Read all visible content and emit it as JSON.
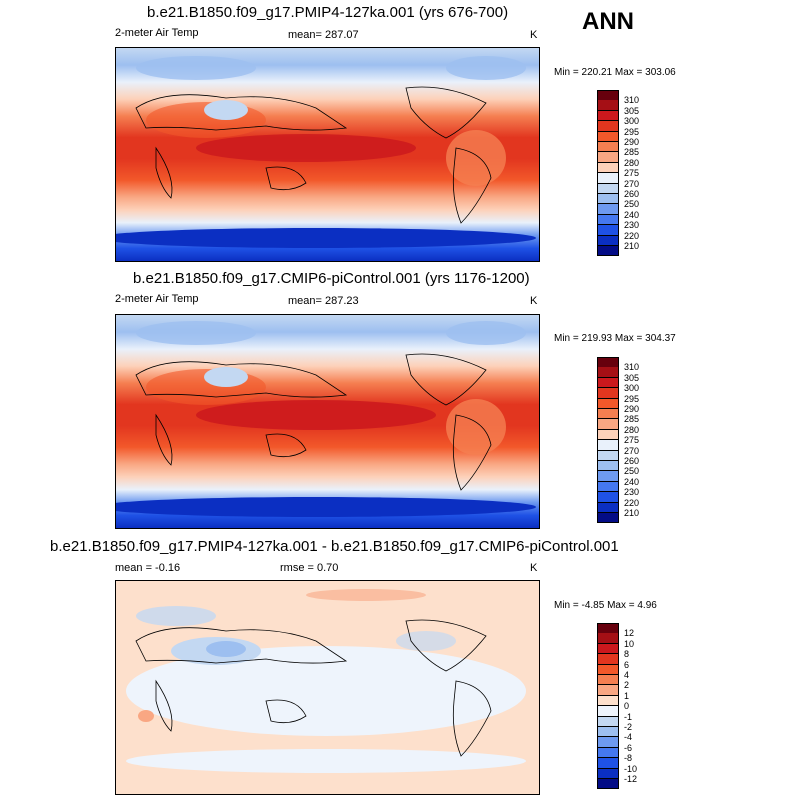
{
  "season": "ANN",
  "panels": [
    {
      "title": "b.e21.B1850.f09_g17.PMIP4-127ka.001 (yrs 676-700)",
      "left_label": "2-meter Air Temp",
      "center_label": "mean= 287.07",
      "units": "K",
      "minmax": "Min = 220.21 Max = 303.06",
      "levels": [
        "310",
        "305",
        "300",
        "295",
        "290",
        "285",
        "280",
        "275",
        "270",
        "260",
        "250",
        "240",
        "230",
        "220",
        "210"
      ],
      "colors": [
        "#67000d",
        "#a50f15",
        "#cb181d",
        "#e2361f",
        "#f2582a",
        "#f57f51",
        "#f9a783",
        "#fdd1b9",
        "#e9f1fb",
        "#c3d8f2",
        "#9dbff0",
        "#6e9af0",
        "#4578f0",
        "#1f52e6",
        "#0b2fc2",
        "#030c86"
      ]
    },
    {
      "title": "b.e21.B1850.f09_g17.CMIP6-piControl.001 (yrs 1176-1200)",
      "left_label": "2-meter Air Temp",
      "center_label": "mean= 287.23",
      "units": "K",
      "minmax": "Min = 219.93 Max = 304.37",
      "levels": [
        "310",
        "305",
        "300",
        "295",
        "290",
        "285",
        "280",
        "275",
        "270",
        "260",
        "250",
        "240",
        "230",
        "220",
        "210"
      ],
      "colors": [
        "#67000d",
        "#a50f15",
        "#cb181d",
        "#e2361f",
        "#f2582a",
        "#f57f51",
        "#f9a783",
        "#fdd1b9",
        "#e9f1fb",
        "#c3d8f2",
        "#9dbff0",
        "#6e9af0",
        "#4578f0",
        "#1f52e6",
        "#0b2fc2",
        "#030c86"
      ]
    },
    {
      "title": "b.e21.B1850.f09_g17.PMIP4-127ka.001 - b.e21.B1850.f09_g17.CMIP6-piControl.001",
      "left_label": "mean =  -0.16",
      "center_label": "rmse =   0.70",
      "units": "K",
      "minmax": "Min =  -4.85 Max =   4.96",
      "levels": [
        "12",
        "10",
        "8",
        "6",
        "4",
        "2",
        "1",
        "0",
        "-1",
        "-2",
        "-4",
        "-6",
        "-8",
        "-10",
        "-12"
      ],
      "colors": [
        "#67000d",
        "#a50f15",
        "#cb181d",
        "#e2361f",
        "#f2582a",
        "#f57f51",
        "#f9a783",
        "#fde0cc",
        "#eef4fc",
        "#c3d8f2",
        "#9dbff0",
        "#6e9af0",
        "#4578f0",
        "#1f52e6",
        "#0b2fc2",
        "#030c86"
      ]
    }
  ]
}
